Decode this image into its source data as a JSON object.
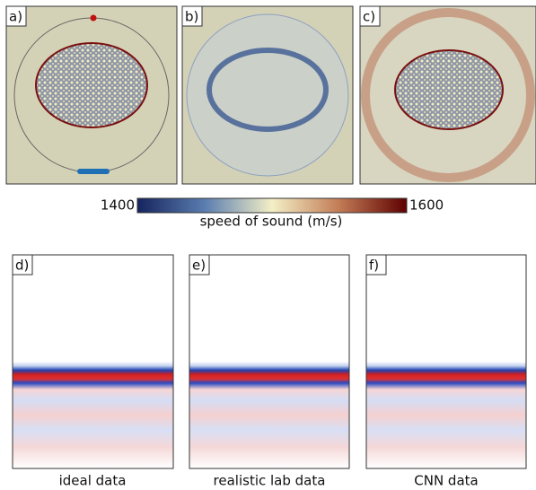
{
  "panels": [
    {
      "label": "a)"
    },
    {
      "label": "b)"
    },
    {
      "label": "c)"
    },
    {
      "label": "d)"
    },
    {
      "label": "e)"
    },
    {
      "label": "f)"
    }
  ],
  "colorbar": {
    "min": 1400,
    "max": 1600,
    "label": "speed of sound (m/s)"
  },
  "captions": [
    "ideal data",
    "realistic lab data",
    "CNN data"
  ]
}
